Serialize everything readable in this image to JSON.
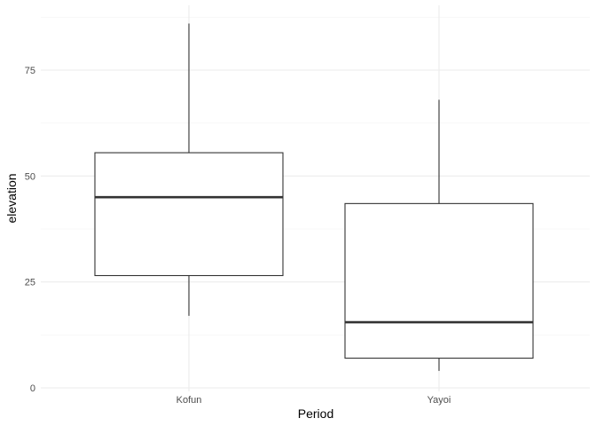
{
  "chart_data": {
    "type": "boxplot",
    "title": "",
    "xlabel": "Period",
    "ylabel": "elevation",
    "ylim": [
      -0.5,
      90
    ],
    "y_ticks": [
      0,
      25,
      50,
      75
    ],
    "y_tick_labels": [
      "0",
      "25",
      "50",
      "75"
    ],
    "grid": true,
    "theme": "minimal",
    "colors": {
      "box_line": "#333333",
      "box_fill": "#ffffff",
      "grid_major": "#ebebeb",
      "grid_minor": "#f3f3f3",
      "tick_label": "#4d4d4d"
    },
    "categories": [
      "Kofun",
      "Yayoi"
    ],
    "boxes": [
      {
        "category": "Kofun",
        "whisker_low": 17,
        "q1": 26.5,
        "median": 45,
        "q3": 55.5,
        "whisker_high": 86
      },
      {
        "category": "Yayoi",
        "whisker_low": 4,
        "q1": 7,
        "median": 15.5,
        "q3": 43.5,
        "whisker_high": 68
      }
    ]
  }
}
